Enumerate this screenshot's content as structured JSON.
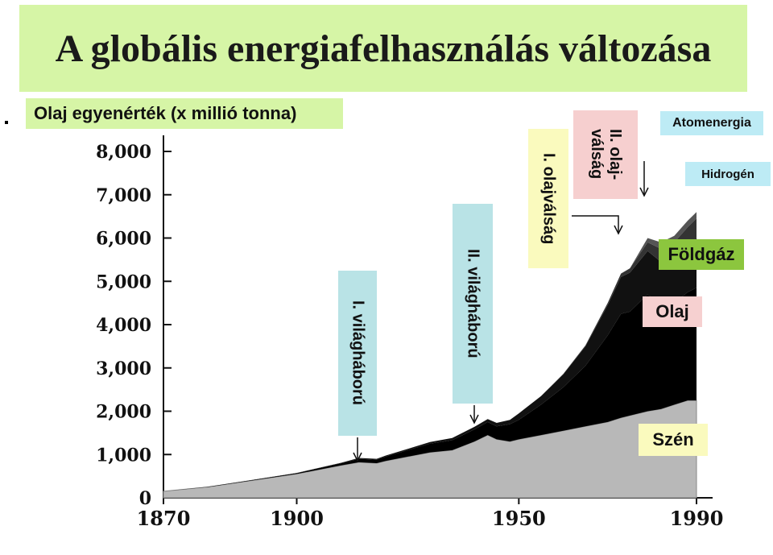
{
  "title": "A globális energiafelhasználás változása",
  "unit_label": "Olaj egyenérték (x millió tonna)",
  "colors": {
    "title_bg": "#d6f5a6",
    "ww_bg": "#b9e3e6",
    "oil_bg": "#fafabe",
    "crisis2_bg": "#f6cfcf",
    "label_bg": "#bdebf5",
    "gas_bg": "#8cc63e",
    "oil_label_bg": "#f6d0d0",
    "coal_bg": "#fafabe"
  },
  "annotations": {
    "ww1": "I. világháború",
    "ww2": "II. világháború",
    "oil1": "I. olajválság",
    "oil2": "II. olaj-\nválság",
    "nuclear": "Atomenergia",
    "hydrogen": "Hidrogén",
    "gas": "Földgáz",
    "oil": "Olaj",
    "coal": "Szén"
  },
  "chart_data": {
    "type": "area",
    "x": [
      1870,
      1880,
      1890,
      1900,
      1910,
      1914,
      1918,
      1920,
      1925,
      1930,
      1935,
      1940,
      1943,
      1945,
      1948,
      1950,
      1955,
      1960,
      1965,
      1970,
      1973,
      1975,
      1979,
      1982,
      1985,
      1988,
      1990
    ],
    "x_ticks": [
      "1870",
      "1900",
      "1950",
      "1990"
    ],
    "y_ticks": [
      "0",
      "1,000",
      "2,000",
      "3,000",
      "4,000",
      "5,000",
      "6,000",
      "7,000",
      "8,000"
    ],
    "ylim": [
      0,
      8000
    ],
    "xlim": [
      1870,
      1990
    ],
    "series": [
      {
        "name": "Szén",
        "values": [
          150,
          250,
          400,
          550,
          750,
          820,
          800,
          850,
          950,
          1050,
          1100,
          1300,
          1450,
          1350,
          1300,
          1350,
          1450,
          1550,
          1650,
          1750,
          1850,
          1900,
          2000,
          2050,
          2150,
          2250,
          2250
        ]
      },
      {
        "name": "Olaj",
        "values": [
          0,
          5,
          10,
          20,
          50,
          80,
          80,
          100,
          150,
          200,
          230,
          280,
          300,
          300,
          400,
          450,
          700,
          1000,
          1400,
          2000,
          2400,
          2400,
          2700,
          2400,
          2350,
          2500,
          2600
        ]
      },
      {
        "name": "Földgáz",
        "values": [
          0,
          0,
          5,
          5,
          10,
          20,
          20,
          25,
          30,
          40,
          50,
          60,
          70,
          80,
          100,
          150,
          200,
          300,
          450,
          700,
          850,
          900,
          1000,
          1000,
          1050,
          1100,
          1150
        ]
      },
      {
        "name": "Atomenergia",
        "values": [
          0,
          0,
          0,
          0,
          0,
          0,
          0,
          0,
          0,
          0,
          0,
          0,
          0,
          0,
          0,
          0,
          0,
          10,
          20,
          50,
          80,
          100,
          200,
          300,
          350,
          400,
          450
        ]
      },
      {
        "name": "Hidrogén",
        "values": [
          0,
          0,
          0,
          0,
          0,
          0,
          0,
          0,
          0,
          0,
          0,
          0,
          0,
          0,
          0,
          0,
          0,
          0,
          0,
          0,
          0,
          0,
          100,
          150,
          150,
          150,
          150
        ]
      }
    ]
  }
}
